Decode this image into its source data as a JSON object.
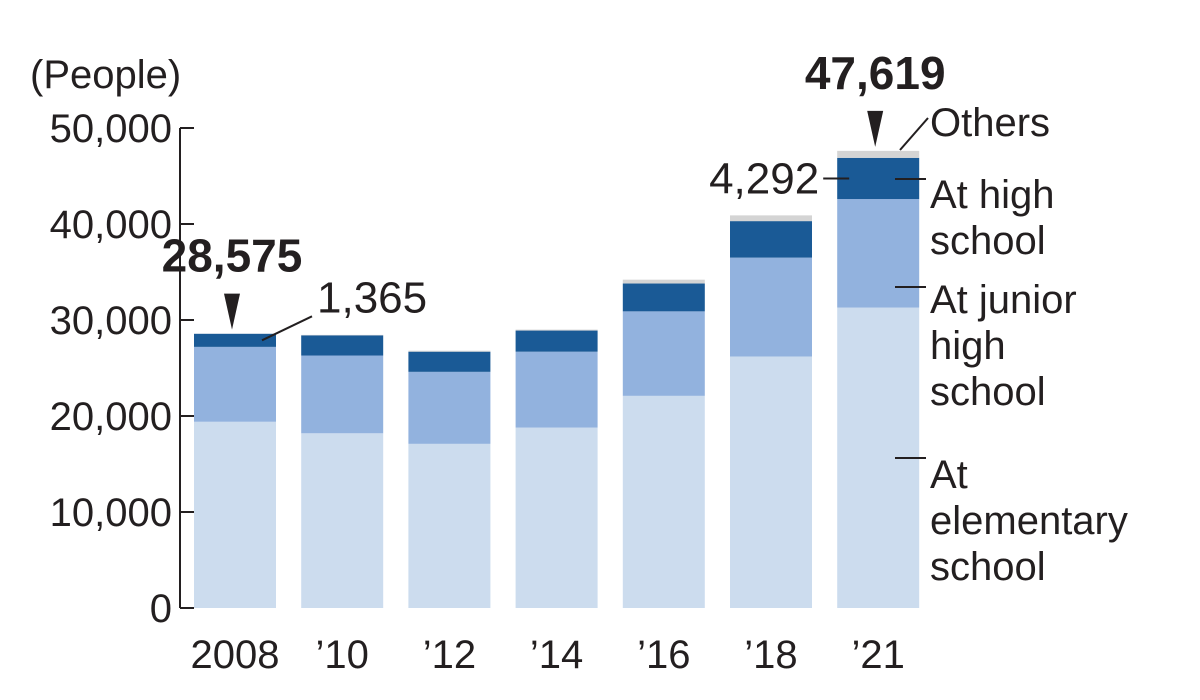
{
  "chart_data": {
    "type": "bar",
    "stacked": true,
    "unit_label": "(People)",
    "categories": [
      "2008",
      "’10",
      "’12",
      "’14",
      "’16",
      "’18",
      "’21"
    ],
    "series": [
      {
        "name": "At elementary school",
        "color": "#ccdcee",
        "values": [
          19400,
          18200,
          17100,
          18800,
          22100,
          26200,
          31300
        ]
      },
      {
        "name": "At junior high school",
        "color": "#92b2de",
        "values": [
          7800,
          8100,
          7500,
          7900,
          8800,
          10300,
          11300
        ]
      },
      {
        "name": "At high school",
        "color": "#1a5a96",
        "values": [
          1365,
          2100,
          2100,
          2200,
          2900,
          3800,
          4292
        ]
      },
      {
        "name": "Others",
        "color": "#d4d4d4",
        "values": [
          10,
          50,
          100,
          100,
          400,
          600,
          727
        ]
      }
    ],
    "legend_lines": [
      [
        "Others"
      ],
      [
        "At high",
        "school"
      ],
      [
        "At junior",
        "high",
        "school"
      ],
      [
        "At",
        "elementary",
        "school"
      ]
    ],
    "totals": [
      {
        "category": "2008",
        "label": "28,575",
        "value": 28575
      },
      {
        "category": "’21",
        "label": "47,619",
        "value": 47619
      }
    ],
    "callouts": [
      {
        "category": "2008",
        "series": "At high school",
        "label": "1,365"
      },
      {
        "category": "’21",
        "series": "At high school",
        "label": "4,292"
      }
    ],
    "yticks": [
      {
        "value": 0,
        "label": "0"
      },
      {
        "value": 10000,
        "label": "10,000"
      },
      {
        "value": 20000,
        "label": "20,000"
      },
      {
        "value": 30000,
        "label": "30,000"
      },
      {
        "value": 40000,
        "label": "40,000"
      },
      {
        "value": 50000,
        "label": "50,000"
      }
    ],
    "ylim": [
      0,
      50000
    ],
    "grid": false,
    "legend_placement": "right, inline labels"
  }
}
